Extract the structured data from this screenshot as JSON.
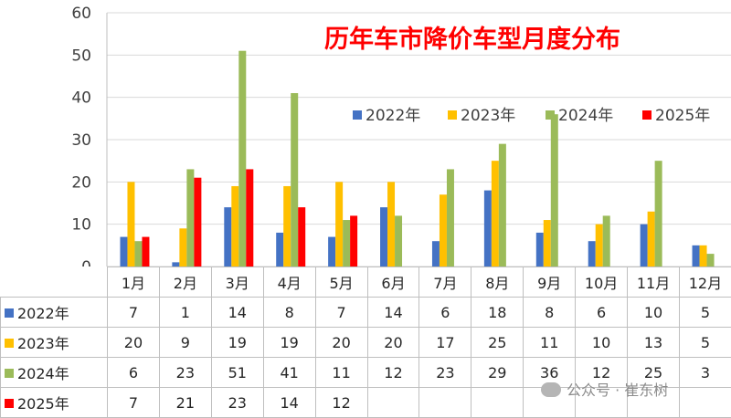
{
  "chart_data": {
    "type": "bar",
    "title": "历年车市降价车型月度分布",
    "categories": [
      "1月",
      "2月",
      "3月",
      "4月",
      "5月",
      "6月",
      "7月",
      "8月",
      "9月",
      "10月",
      "11月",
      "12月"
    ],
    "ylim": [
      0,
      60
    ],
    "yticks": [
      0,
      10,
      20,
      30,
      40,
      50,
      60
    ],
    "grid": true,
    "legend_position": "top-right",
    "series": [
      {
        "name": "2022年",
        "color": "#4472c4",
        "values": [
          7,
          1,
          14,
          8,
          7,
          14,
          6,
          18,
          8,
          6,
          10,
          5
        ]
      },
      {
        "name": "2023年",
        "color": "#ffc000",
        "values": [
          20,
          9,
          19,
          19,
          20,
          20,
          17,
          25,
          11,
          10,
          13,
          5
        ]
      },
      {
        "name": "2024年",
        "color": "#9bbb59",
        "values": [
          6,
          23,
          51,
          41,
          11,
          12,
          23,
          29,
          36,
          12,
          25,
          3
        ]
      },
      {
        "name": "2025年",
        "color": "#ff0000",
        "values": [
          7,
          21,
          23,
          14,
          12,
          null,
          null,
          null,
          null,
          null,
          null,
          null
        ]
      }
    ]
  },
  "watermark": {
    "icon": "wechat-icon",
    "text": "公众号 · 崔东树"
  }
}
